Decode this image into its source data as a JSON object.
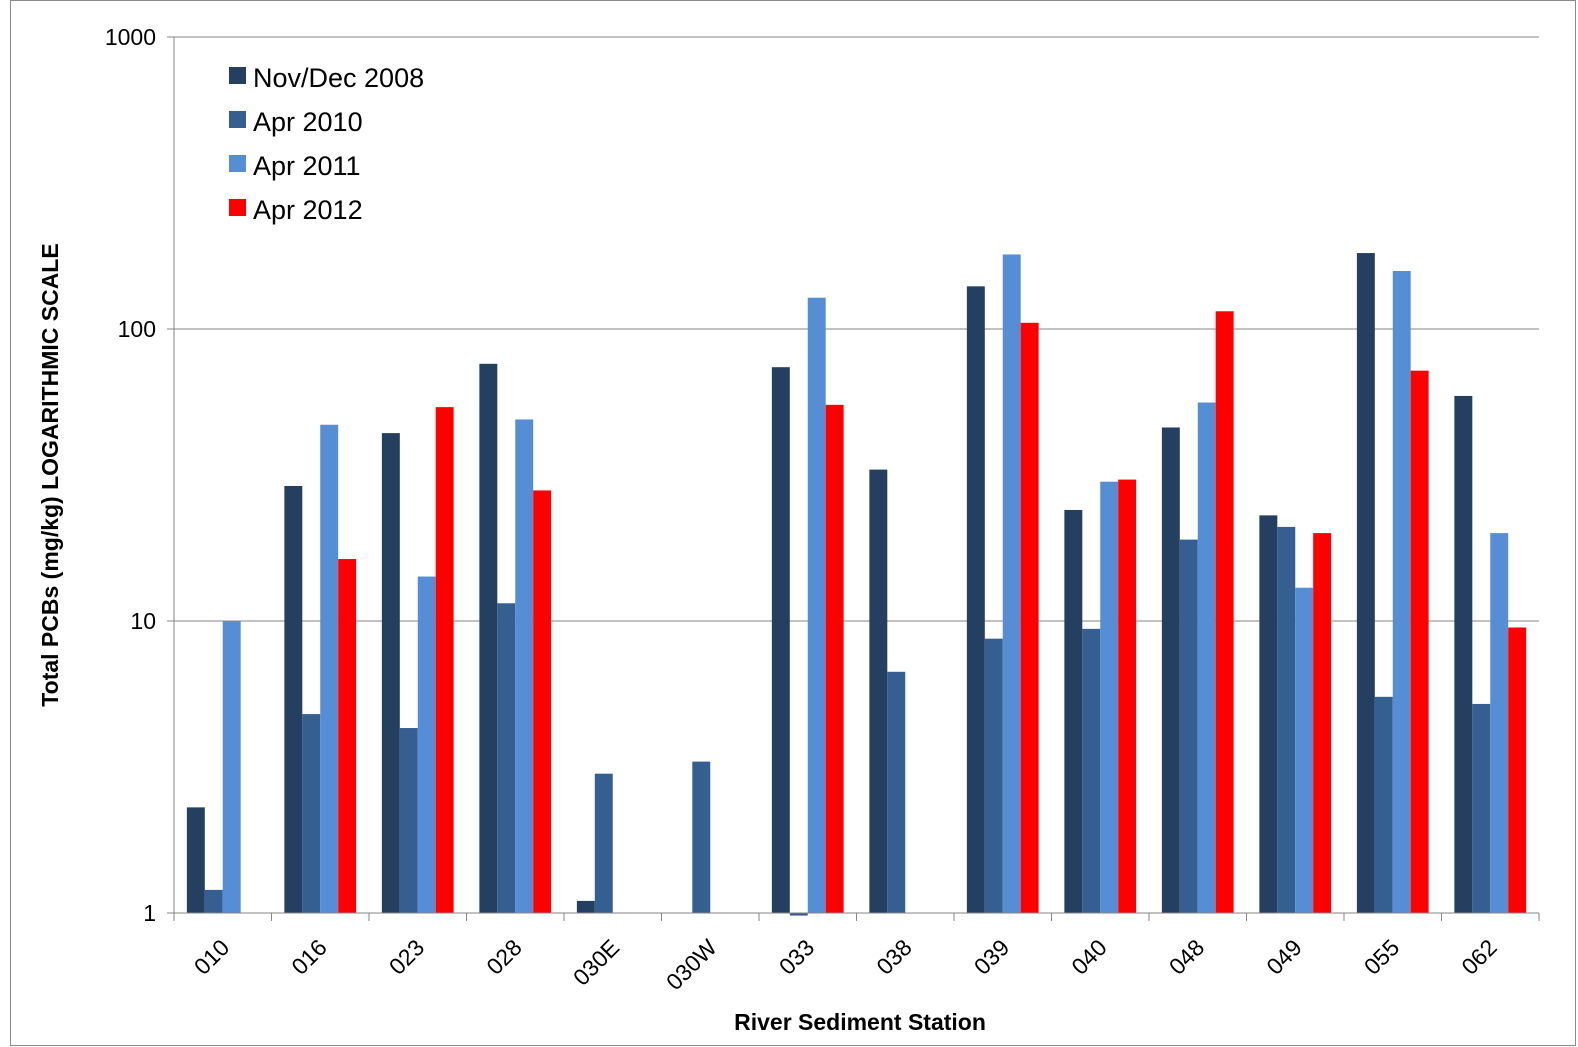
{
  "chart_data": {
    "type": "bar",
    "title": "",
    "xlabel": "River Sediment Station",
    "ylabel": "Total PCBs (mg/kg) LOGARITHMIC SCALE",
    "yscale": "log",
    "ylim": [
      1,
      1000
    ],
    "yticks": [
      1,
      10,
      100,
      1000
    ],
    "grid": "horizontal",
    "legend_position": "top-left",
    "categories": [
      "010",
      "016",
      "023",
      "028",
      "030E",
      "030W",
      "033",
      "038",
      "039",
      "040",
      "048",
      "049",
      "055",
      "062"
    ],
    "series": [
      {
        "name": "Nov/Dec 2008",
        "color": "#243f60",
        "values": [
          2.3,
          29,
          44,
          76,
          1.1,
          null,
          74,
          33,
          140,
          24,
          46,
          23,
          182,
          59
        ]
      },
      {
        "name": "Apr 2010",
        "color": "#365f91",
        "values": [
          1.2,
          4.8,
          4.3,
          11.5,
          3.0,
          3.3,
          0.98,
          6.7,
          8.7,
          9.4,
          19,
          21,
          5.5,
          5.2
        ]
      },
      {
        "name": "Apr 2011",
        "color": "#558ed5",
        "values": [
          10,
          47,
          14.2,
          49,
          null,
          null,
          128,
          null,
          180,
          30,
          56,
          13,
          158,
          20
        ]
      },
      {
        "name": "Apr 2012",
        "color": "#ff0000",
        "values": [
          null,
          16.3,
          54,
          28,
          null,
          null,
          55,
          null,
          105,
          30.5,
          115,
          20,
          72,
          9.5
        ]
      }
    ]
  }
}
